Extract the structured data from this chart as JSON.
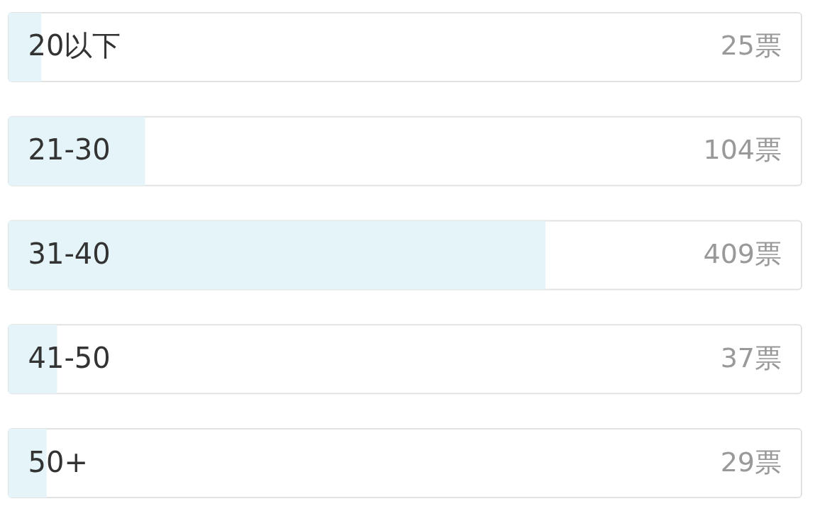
{
  "chart_data": {
    "type": "bar",
    "orientation": "horizontal",
    "categories": [
      "20以下",
      "21-30",
      "31-40",
      "41-50",
      "50+"
    ],
    "values": [
      25,
      104,
      409,
      37,
      29
    ],
    "value_labels": [
      "25票",
      "104票",
      "409票",
      "37票",
      "29票"
    ],
    "color": "#e5f4f8",
    "xlim": [
      0,
      604
    ],
    "tick_labels": "y"
  }
}
